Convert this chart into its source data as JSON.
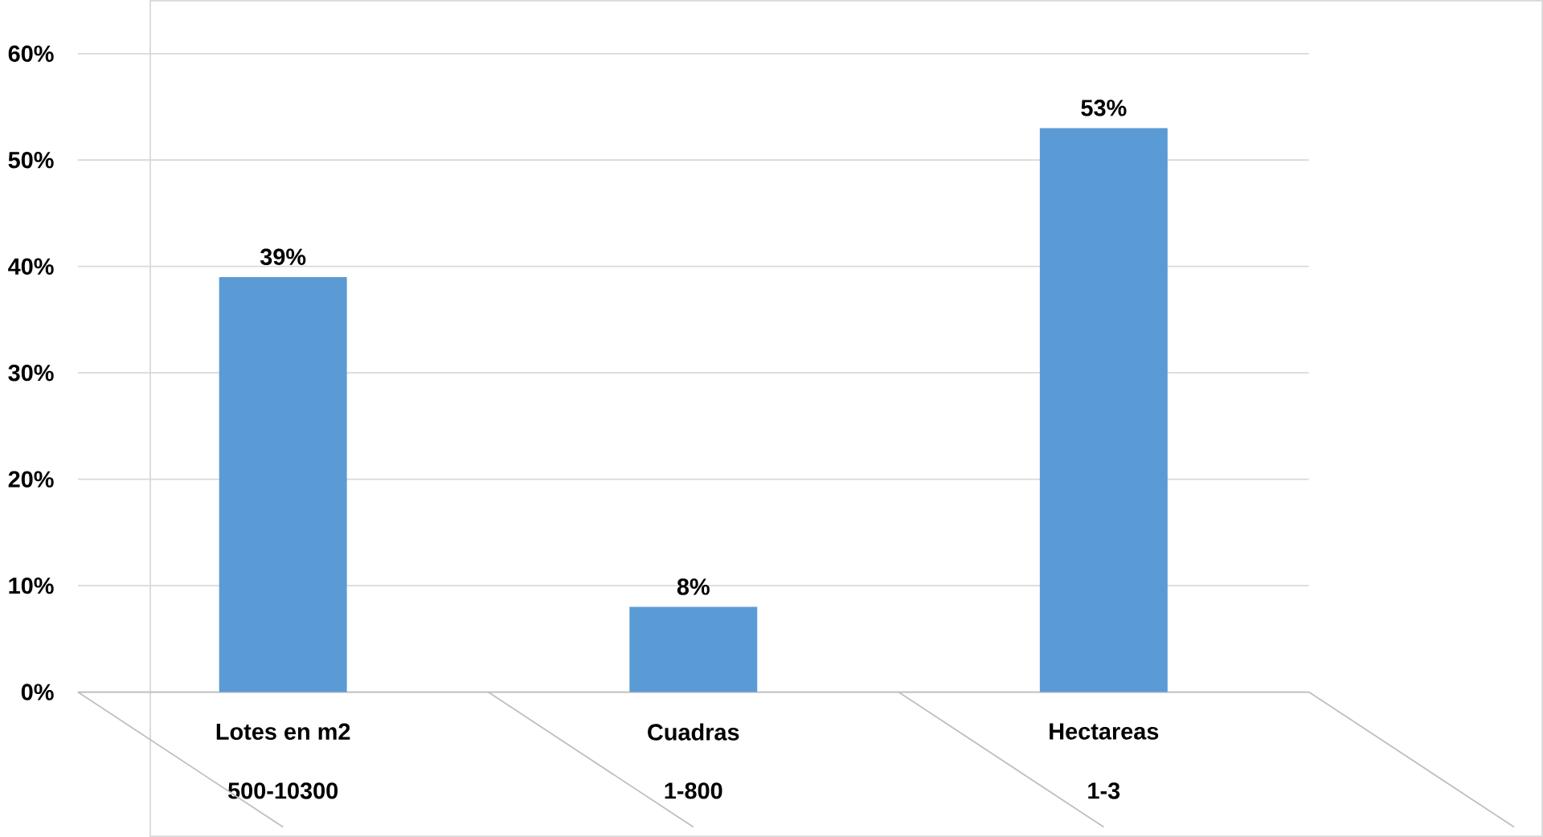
{
  "chart_data": {
    "type": "bar",
    "categories": [
      "Lotes en m2",
      "Cuadras",
      "Hectareas"
    ],
    "annotations": [
      "500-10300",
      "1-800",
      "1-3"
    ],
    "values": [
      39,
      8,
      53
    ],
    "value_labels": [
      "39%",
      "8%",
      "53%"
    ],
    "color": "#5b9bd5",
    "ylim": [
      0,
      60
    ],
    "yticks": [
      {
        "value": 0,
        "label": "0%"
      },
      {
        "value": 10,
        "label": "10%"
      },
      {
        "value": 20,
        "label": "20%"
      },
      {
        "value": 30,
        "label": "30%"
      },
      {
        "value": 40,
        "label": "40%"
      },
      {
        "value": 50,
        "label": "50%"
      },
      {
        "value": 60,
        "label": "60%"
      }
    ],
    "grid": "y"
  }
}
